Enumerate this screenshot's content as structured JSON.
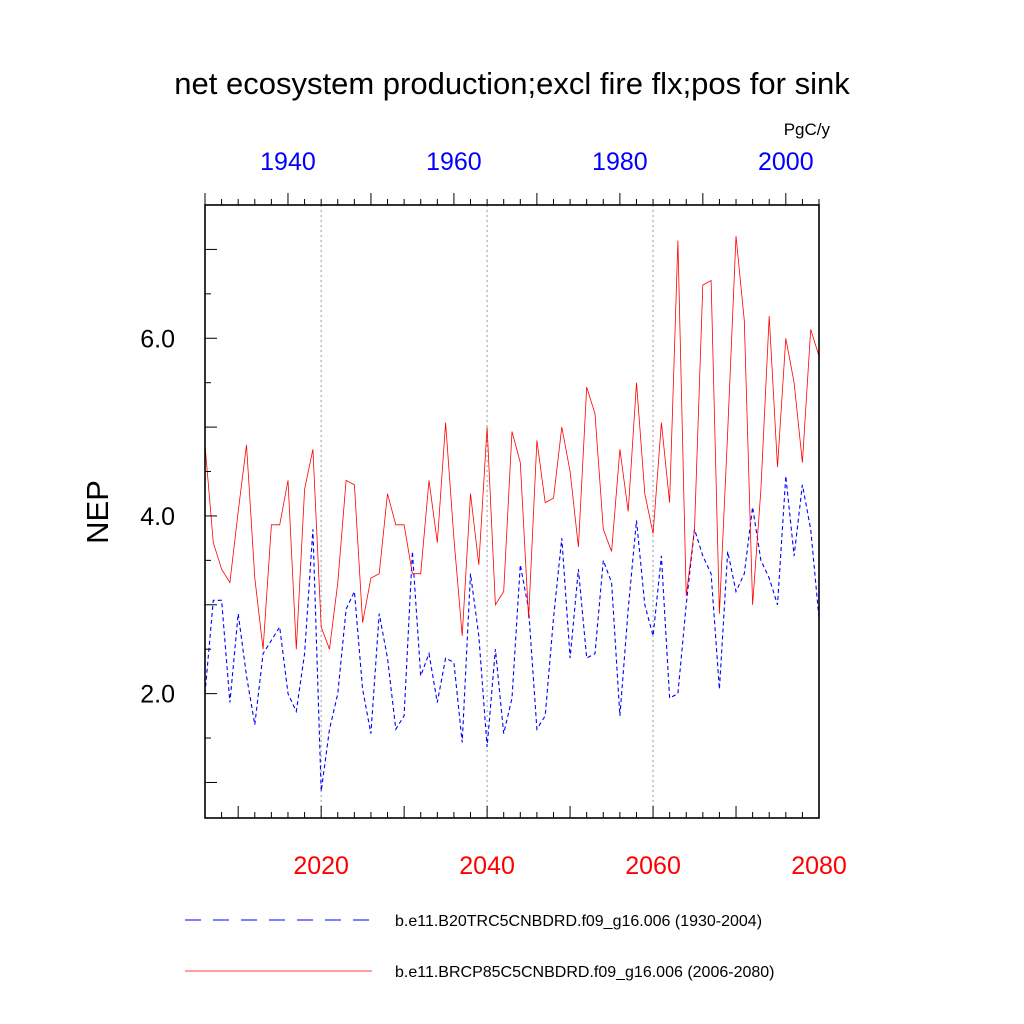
{
  "chart_data": {
    "type": "line",
    "title": "net ecosystem production;excl fire flx;pos for sink",
    "units": "PgC/y",
    "ylabel": "NEP",
    "ylim": [
      0.6,
      7.5
    ],
    "yticks": [
      2.0,
      4.0,
      6.0
    ],
    "ytick_labels": [
      "2.0",
      "4.0",
      "6.0"
    ],
    "bottom_axis": {
      "range": [
        2006,
        2080
      ],
      "ticks": [
        2020,
        2040,
        2060,
        2080
      ],
      "tick_labels": [
        "2020",
        "2040",
        "2060",
        "2080"
      ],
      "color": "#ff0000"
    },
    "top_axis": {
      "range": [
        1930,
        2004
      ],
      "ticks": [
        1940,
        1960,
        1980,
        2000
      ],
      "tick_labels": [
        "1940",
        "1960",
        "1980",
        "2000"
      ],
      "color": "#0000ff"
    },
    "gridlines_x": [
      2020,
      2040,
      2060
    ],
    "legend_position": "bottom",
    "series": [
      {
        "name": "b.e11.B20TRC5CNBDRD.f09_g16.006 (1930-2004)",
        "color": "#0000ff",
        "style": "dashed",
        "axis": "top",
        "x_start": 1930,
        "values": [
          2.0,
          3.05,
          3.05,
          1.9,
          2.9,
          2.2,
          1.65,
          2.45,
          2.6,
          2.75,
          2.0,
          1.8,
          2.45,
          3.85,
          0.9,
          1.6,
          2.0,
          2.95,
          3.15,
          2.05,
          1.55,
          2.9,
          2.4,
          1.6,
          1.75,
          3.6,
          2.2,
          2.45,
          1.9,
          2.4,
          2.35,
          1.45,
          3.35,
          2.65,
          1.4,
          2.5,
          1.55,
          1.95,
          3.45,
          2.95,
          1.6,
          1.75,
          2.85,
          3.75,
          2.4,
          3.4,
          2.4,
          2.45,
          3.5,
          3.25,
          1.75,
          2.95,
          3.95,
          3.0,
          2.65,
          3.55,
          1.95,
          2.0,
          3.0,
          3.85,
          3.55,
          3.35,
          2.05,
          3.6,
          3.15,
          3.35,
          4.1,
          3.5,
          3.3,
          3.0,
          4.45,
          3.55,
          4.35,
          3.85,
          2.85
        ]
      },
      {
        "name": "b.e11.BRCP85C5CNBDRD.f09_g16.006 (2006-2080)",
        "color": "#ff0000",
        "style": "solid",
        "axis": "bottom",
        "x_start": 2006,
        "values": [
          4.8,
          3.7,
          3.4,
          3.25,
          4.05,
          4.8,
          3.3,
          2.5,
          3.9,
          3.9,
          4.4,
          2.5,
          4.3,
          4.75,
          2.75,
          2.5,
          3.25,
          4.4,
          4.35,
          2.8,
          3.3,
          3.35,
          4.25,
          3.9,
          3.9,
          3.35,
          3.35,
          4.4,
          3.7,
          5.05,
          3.75,
          2.65,
          4.25,
          3.45,
          5.0,
          3.0,
          3.15,
          4.95,
          4.6,
          2.85,
          4.85,
          4.15,
          4.2,
          5.0,
          4.5,
          3.65,
          5.45,
          5.15,
          3.85,
          3.6,
          4.75,
          4.05,
          5.5,
          4.25,
          3.8,
          5.05,
          4.15,
          7.1,
          3.1,
          3.85,
          6.6,
          6.65,
          2.9,
          4.95,
          7.15,
          6.2,
          3.0,
          4.3,
          6.25,
          4.55,
          6.0,
          5.5,
          4.6,
          6.1,
          5.8
        ]
      }
    ]
  }
}
